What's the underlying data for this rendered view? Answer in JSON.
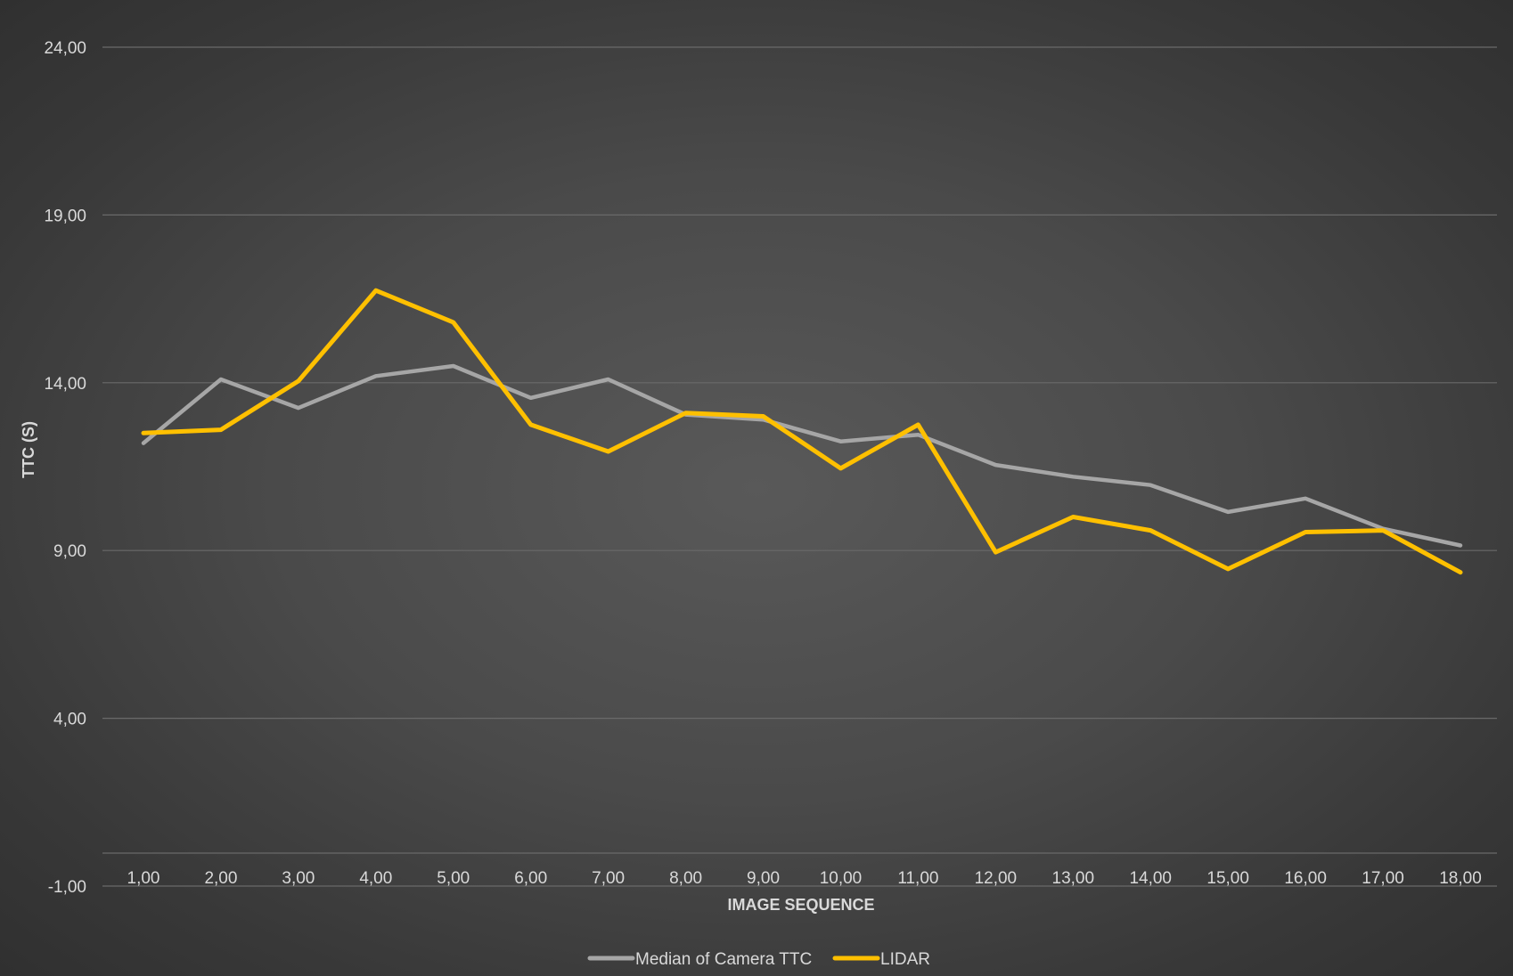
{
  "chart_data": {
    "type": "line",
    "x": [
      1,
      2,
      3,
      4,
      5,
      6,
      7,
      8,
      9,
      10,
      11,
      12,
      13,
      14,
      15,
      16,
      17,
      18
    ],
    "x_tick_labels": [
      "1,00",
      "2,00",
      "3,00",
      "4,00",
      "5,00",
      "6,00",
      "7,00",
      "8,00",
      "9,00",
      "10,00",
      "11,00",
      "12,00",
      "13,00",
      "14,00",
      "15,00",
      "16,00",
      "17,00",
      "18,00"
    ],
    "y_tick_labels": [
      "-1,00",
      "4,00",
      "9,00",
      "14,00",
      "19,00",
      "24,00"
    ],
    "y_ticks": [
      -1,
      4,
      9,
      14,
      19,
      24
    ],
    "ylim": [
      -1,
      24
    ],
    "xlabel": "IMAGE SEQUENCE",
    "ylabel": "TTC (S)",
    "grid": true,
    "legend_position": "bottom",
    "series": [
      {
        "name": "Median of Camera TTC",
        "color": "#a6a6a6",
        "values": [
          12.2,
          14.1,
          13.25,
          14.2,
          14.5,
          13.55,
          14.1,
          13.05,
          12.9,
          12.25,
          12.45,
          11.55,
          11.2,
          10.95,
          10.15,
          10.55,
          9.65,
          9.15
        ]
      },
      {
        "name": "LIDAR",
        "color": "#ffc000",
        "values": [
          12.5,
          12.6,
          14.05,
          16.75,
          15.8,
          12.75,
          11.95,
          13.1,
          13.0,
          11.45,
          12.75,
          8.95,
          10.0,
          9.6,
          8.45,
          9.55,
          9.6,
          8.35
        ]
      }
    ]
  }
}
